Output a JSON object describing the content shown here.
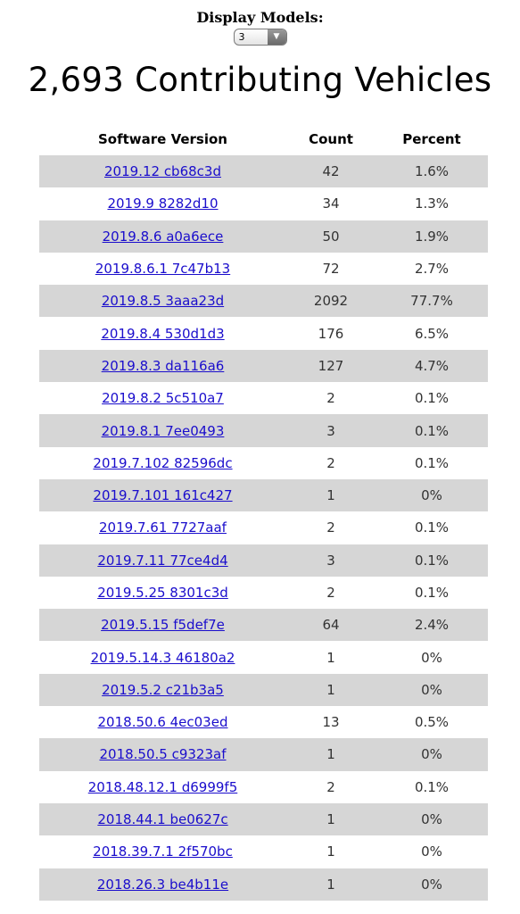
{
  "display_models": {
    "label": "Display Models:",
    "selected": "3",
    "arrow_icon": "triangle-down-icon"
  },
  "title": "2,693 Contributing Vehicles",
  "table": {
    "headers": {
      "version": "Software Version",
      "count": "Count",
      "percent": "Percent"
    },
    "rows": [
      {
        "version": "2019.12 cb68c3d",
        "count": "42",
        "percent": "1.6%"
      },
      {
        "version": "2019.9 8282d10",
        "count": "34",
        "percent": "1.3%"
      },
      {
        "version": "2019.8.6 a0a6ece",
        "count": "50",
        "percent": "1.9%"
      },
      {
        "version": "2019.8.6.1 7c47b13",
        "count": "72",
        "percent": "2.7%"
      },
      {
        "version": "2019.8.5 3aaa23d",
        "count": "2092",
        "percent": "77.7%"
      },
      {
        "version": "2019.8.4 530d1d3",
        "count": "176",
        "percent": "6.5%"
      },
      {
        "version": "2019.8.3 da116a6",
        "count": "127",
        "percent": "4.7%"
      },
      {
        "version": "2019.8.2 5c510a7",
        "count": "2",
        "percent": "0.1%"
      },
      {
        "version": "2019.8.1 7ee0493",
        "count": "3",
        "percent": "0.1%"
      },
      {
        "version": "2019.7.102 82596dc",
        "count": "2",
        "percent": "0.1%"
      },
      {
        "version": "2019.7.101 161c427",
        "count": "1",
        "percent": "0%"
      },
      {
        "version": "2019.7.61 7727aaf",
        "count": "2",
        "percent": "0.1%"
      },
      {
        "version": "2019.7.11 77ce4d4",
        "count": "3",
        "percent": "0.1%"
      },
      {
        "version": "2019.5.25 8301c3d",
        "count": "2",
        "percent": "0.1%"
      },
      {
        "version": "2019.5.15 f5def7e",
        "count": "64",
        "percent": "2.4%"
      },
      {
        "version": "2019.5.14.3 46180a2",
        "count": "1",
        "percent": "0%"
      },
      {
        "version": "2019.5.2 c21b3a5",
        "count": "1",
        "percent": "0%"
      },
      {
        "version": "2018.50.6 4ec03ed",
        "count": "13",
        "percent": "0.5%"
      },
      {
        "version": "2018.50.5 c9323af",
        "count": "1",
        "percent": "0%"
      },
      {
        "version": "2018.48.12.1 d6999f5",
        "count": "2",
        "percent": "0.1%"
      },
      {
        "version": "2018.44.1 be0627c",
        "count": "1",
        "percent": "0%"
      },
      {
        "version": "2018.39.7.1 2f570bc",
        "count": "1",
        "percent": "0%"
      },
      {
        "version": "2018.26.3 be4b11e",
        "count": "1",
        "percent": "0%"
      }
    ]
  },
  "colors": {
    "link": "#1a0dcc",
    "stripe": "#d6d6d6"
  }
}
